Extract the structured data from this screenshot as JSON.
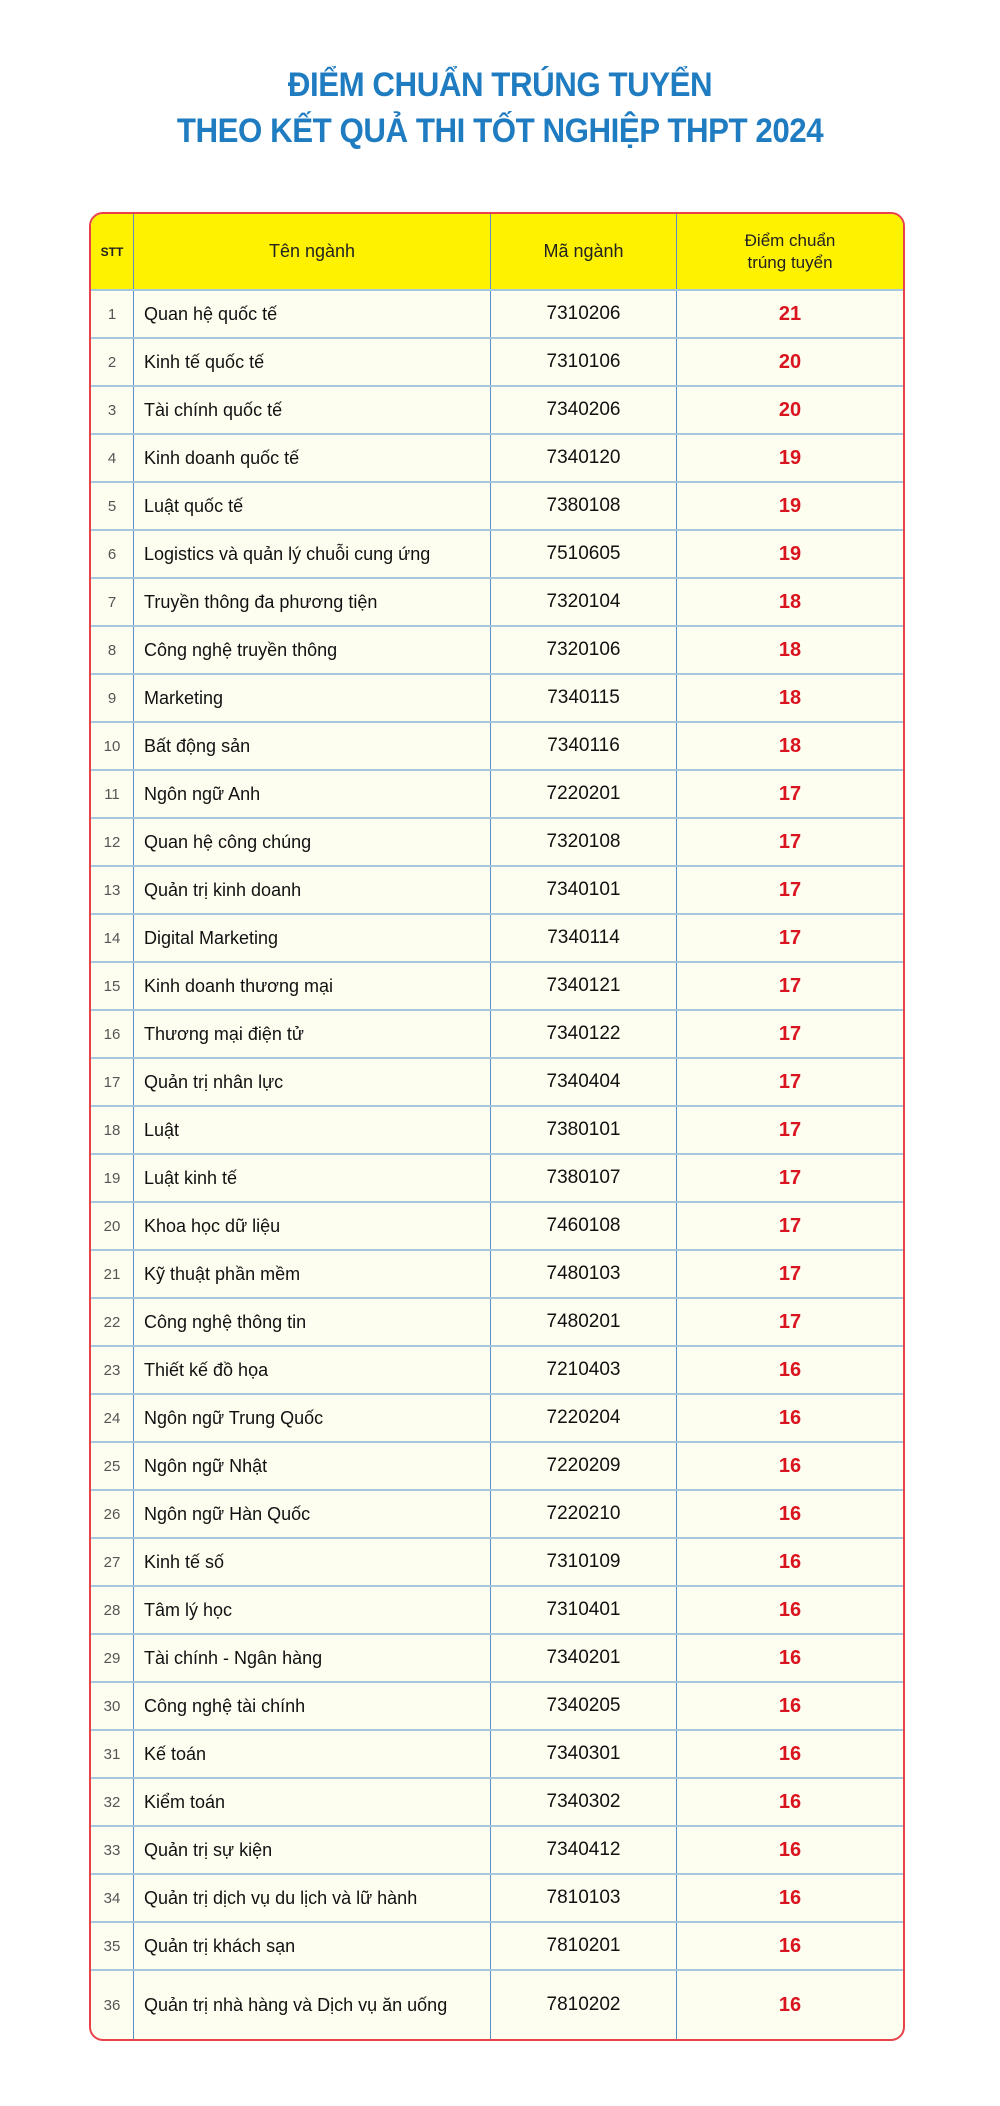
{
  "title": {
    "line1": "ĐIỂM CHUẨN TRÚNG TUYỂN",
    "line2": "THEO KẾT QUẢ THI TỐT NGHIỆP THPT 2024"
  },
  "headers": {
    "stt": "STT",
    "name": "Tên ngành",
    "code": "Mã ngành",
    "score_line1": "Điểm chuẩn",
    "score_line2": "trúng tuyển"
  },
  "colors": {
    "title": "#1f7cc1",
    "header_bg": "#fff200",
    "score": "#d9141e",
    "border": "#e8414a"
  },
  "rows": [
    {
      "stt": "1",
      "name": "Quan hệ quốc tế",
      "code": "7310206",
      "score": "21"
    },
    {
      "stt": "2",
      "name": "Kinh tế quốc tế",
      "code": "7310106",
      "score": "20"
    },
    {
      "stt": "3",
      "name": "Tài chính quốc tế",
      "code": "7340206",
      "score": "20"
    },
    {
      "stt": "4",
      "name": "Kinh doanh quốc tế",
      "code": "7340120",
      "score": "19"
    },
    {
      "stt": "5",
      "name": "Luật quốc tế",
      "code": "7380108",
      "score": "19"
    },
    {
      "stt": "6",
      "name": "Logistics và quản lý chuỗi cung ứng",
      "code": "7510605",
      "score": "19"
    },
    {
      "stt": "7",
      "name": "Truyền thông đa phương tiện",
      "code": "7320104",
      "score": "18"
    },
    {
      "stt": "8",
      "name": "Công nghệ truyền thông",
      "code": "7320106",
      "score": "18"
    },
    {
      "stt": "9",
      "name": "Marketing",
      "code": "7340115",
      "score": "18"
    },
    {
      "stt": "10",
      "name": "Bất động sản",
      "code": "7340116",
      "score": "18"
    },
    {
      "stt": "11",
      "name": "Ngôn ngữ Anh",
      "code": "7220201",
      "score": "17"
    },
    {
      "stt": "12",
      "name": "Quan hệ công chúng",
      "code": "7320108",
      "score": "17"
    },
    {
      "stt": "13",
      "name": "Quản trị kinh doanh",
      "code": "7340101",
      "score": "17"
    },
    {
      "stt": "14",
      "name": "Digital Marketing",
      "code": "7340114",
      "score": "17"
    },
    {
      "stt": "15",
      "name": "Kinh doanh thương mại",
      "code": "7340121",
      "score": "17"
    },
    {
      "stt": "16",
      "name": "Thương mại điện tử",
      "code": "7340122",
      "score": "17"
    },
    {
      "stt": "17",
      "name": "Quản trị nhân lực",
      "code": "7340404",
      "score": "17"
    },
    {
      "stt": "18",
      "name": "Luật",
      "code": "7380101",
      "score": "17"
    },
    {
      "stt": "19",
      "name": "Luật kinh tế",
      "code": "7380107",
      "score": "17"
    },
    {
      "stt": "20",
      "name": "Khoa học dữ liệu",
      "code": "7460108",
      "score": "17"
    },
    {
      "stt": "21",
      "name": "Kỹ thuật phần mềm",
      "code": "7480103",
      "score": "17"
    },
    {
      "stt": "22",
      "name": "Công nghệ thông tin",
      "code": "7480201",
      "score": "17"
    },
    {
      "stt": "23",
      "name": "Thiết kế đồ họa",
      "code": "7210403",
      "score": "16"
    },
    {
      "stt": "24",
      "name": "Ngôn ngữ Trung Quốc",
      "code": "7220204",
      "score": "16"
    },
    {
      "stt": "25",
      "name": "Ngôn ngữ Nhật",
      "code": "7220209",
      "score": "16"
    },
    {
      "stt": "26",
      "name": "Ngôn ngữ Hàn Quốc",
      "code": "7220210",
      "score": "16"
    },
    {
      "stt": "27",
      "name": "Kinh tế số",
      "code": "7310109",
      "score": "16"
    },
    {
      "stt": "28",
      "name": "Tâm lý học",
      "code": "7310401",
      "score": "16"
    },
    {
      "stt": "29",
      "name": "Tài chính - Ngân hàng",
      "code": "7340201",
      "score": "16"
    },
    {
      "stt": "30",
      "name": "Công nghệ tài chính",
      "code": "7340205",
      "score": "16"
    },
    {
      "stt": "31",
      "name": "Kế toán",
      "code": "7340301",
      "score": "16"
    },
    {
      "stt": "32",
      "name": "Kiểm toán",
      "code": "7340302",
      "score": "16"
    },
    {
      "stt": "33",
      "name": "Quản trị sự kiện",
      "code": "7340412",
      "score": "16"
    },
    {
      "stt": "34",
      "name": "Quản trị dịch vụ du lịch và lữ hành",
      "code": "7810103",
      "score": "16"
    },
    {
      "stt": "35",
      "name": "Quản trị khách sạn",
      "code": "7810201",
      "score": "16"
    },
    {
      "stt": "36",
      "name": "Quản trị nhà hàng và Dịch vụ ăn uống",
      "code": "7810202",
      "score": "16"
    }
  ]
}
